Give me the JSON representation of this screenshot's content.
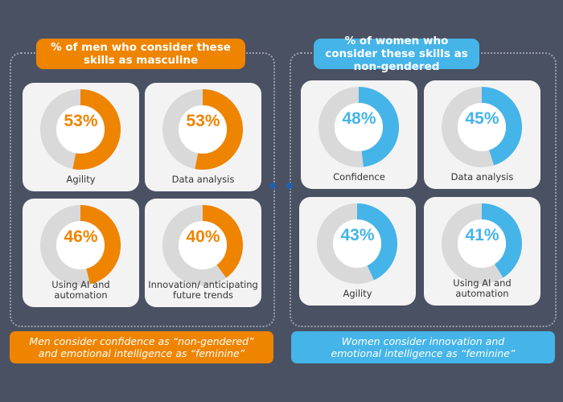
{
  "colors": {
    "men": "#ee8400",
    "women": "#45b4e8",
    "ring_bg": "#d9d9d9"
  },
  "men": {
    "header": "% of men who consider these skills as masculine",
    "items": [
      {
        "label": "Agility",
        "value": 53,
        "text": "53%"
      },
      {
        "label": "Data analysis",
        "value": 53,
        "text": "53%"
      },
      {
        "label": "Using AI and\nautomation",
        "value": 46,
        "text": "46%"
      },
      {
        "label": "Innovation/ anticipating\nfuture trends",
        "value": 40,
        "text": "40%"
      }
    ],
    "note": "Men consider confidence as “non-gendered”\nand emotional intelligence as “feminine”"
  },
  "women": {
    "header": "% of women who consider these skills as non-gendered",
    "items": [
      {
        "label": "Confidence",
        "value": 48,
        "text": "48%"
      },
      {
        "label": "Data analysis",
        "value": 45,
        "text": "45%"
      },
      {
        "label": "Agility",
        "value": 43,
        "text": "43%"
      },
      {
        "label": "Using AI and\nautomation",
        "value": 41,
        "text": "41%"
      }
    ],
    "note": "Women consider innovation and\nemotional intelligence as “feminine”"
  }
}
